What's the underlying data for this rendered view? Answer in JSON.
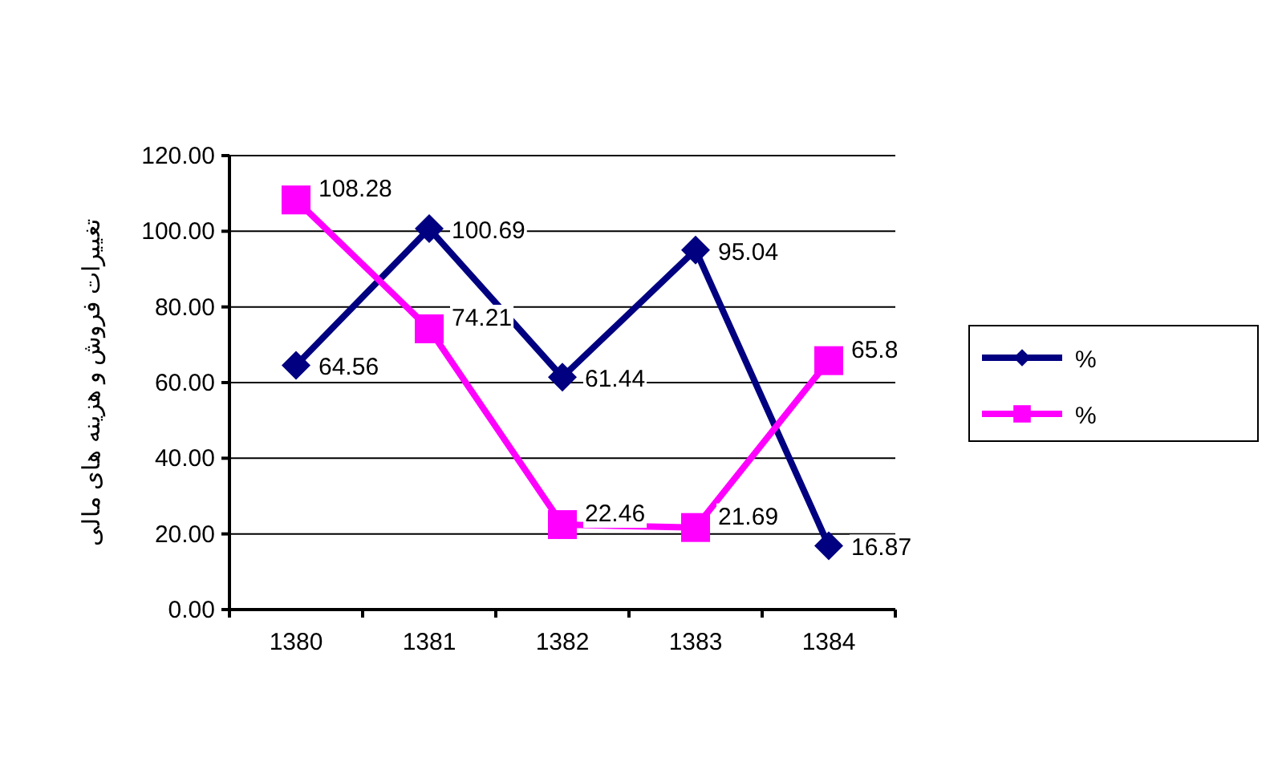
{
  "chart_data": {
    "type": "line",
    "ylabel": "تغییرات فروش و هزینه های مالی",
    "categories": [
      "1380",
      "1381",
      "1382",
      "1383",
      "1384"
    ],
    "series": [
      {
        "name": "%",
        "color": "#000080",
        "marker": "diamond",
        "values": [
          64.56,
          100.69,
          61.44,
          95.04,
          16.87
        ],
        "value_labels": [
          "64.56",
          "100.69",
          "61.44",
          "95.04",
          "16.87"
        ]
      },
      {
        "name": "%",
        "color": "#ff00ff",
        "marker": "square",
        "values": [
          108.28,
          74.21,
          22.46,
          21.69,
          65.8
        ],
        "value_labels": [
          "108.28",
          "74.21",
          "22.46",
          "21.69",
          "65.8"
        ]
      }
    ],
    "ylim": [
      0,
      120
    ],
    "yticks": [
      {
        "value": 0,
        "label": "0.00"
      },
      {
        "value": 20,
        "label": "20.00"
      },
      {
        "value": 40,
        "label": "40.00"
      },
      {
        "value": 60,
        "label": "60.00"
      },
      {
        "value": 80,
        "label": "80.00"
      },
      {
        "value": 100,
        "label": "100.00"
      },
      {
        "value": 120,
        "label": "120.00"
      }
    ],
    "grid": "y",
    "legend": "right",
    "line_style": "solid"
  }
}
